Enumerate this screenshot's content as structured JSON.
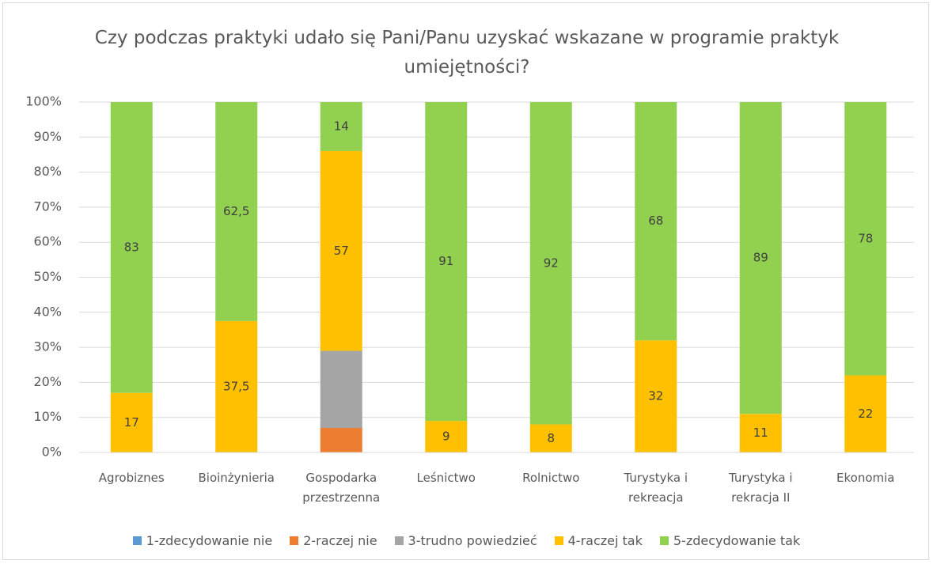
{
  "chart_data": {
    "type": "stacked_bar",
    "title": "Czy podczas praktyki udało się Pani/Panu uzyskać wskazane w programie praktyk umiejętności?",
    "categories": [
      "Agrobiznes",
      "Bioinżynieria",
      "Gospodarka przestrzenna",
      "Leśnictwo",
      "Rolnictwo",
      "Turystyka i rekreacja",
      "Turystyka i rekracja II",
      "Ekonomia"
    ],
    "series": [
      {
        "name": "1-zdecydowanie nie",
        "color": "#5b9bd5",
        "values": [
          0,
          0,
          0,
          0,
          0,
          0,
          0,
          0
        ],
        "labels": false
      },
      {
        "name": "2-raczej nie",
        "color": "#ed7d31",
        "values": [
          0,
          0,
          7,
          0,
          0,
          0,
          0,
          0
        ],
        "labels": false
      },
      {
        "name": "3-trudno powiedzieć",
        "color": "#a5a5a5",
        "values": [
          0,
          0,
          22,
          0,
          0,
          0,
          0,
          0
        ],
        "labels": false
      },
      {
        "name": "4-raczej tak",
        "color": "#ffc000",
        "values": [
          17,
          37.5,
          57,
          9,
          8,
          32,
          11,
          22
        ],
        "value_labels": [
          "17",
          "37,5",
          "57",
          "9",
          "8",
          "32",
          "11",
          "22"
        ],
        "labels": true
      },
      {
        "name": "5-zdecydowanie tak",
        "color": "#92d050",
        "values": [
          83,
          62.5,
          14,
          91,
          92,
          68,
          89,
          78
        ],
        "value_labels": [
          "83",
          "62,5",
          "14",
          "91",
          "92",
          "68",
          "89",
          "78"
        ],
        "labels": true
      }
    ],
    "ylim": [
      0,
      100
    ],
    "yticks": [
      {
        "value": 0,
        "label": "0%"
      },
      {
        "value": 10,
        "label": "10%"
      },
      {
        "value": 20,
        "label": "20%"
      },
      {
        "value": 30,
        "label": "30%"
      },
      {
        "value": 40,
        "label": "40%"
      },
      {
        "value": 50,
        "label": "50%"
      },
      {
        "value": 60,
        "label": "60%"
      },
      {
        "value": 70,
        "label": "70%"
      },
      {
        "value": 80,
        "label": "80%"
      },
      {
        "value": 90,
        "label": "90%"
      },
      {
        "value": 100,
        "label": "100%"
      }
    ],
    "grid": true,
    "legend": "bottom"
  }
}
